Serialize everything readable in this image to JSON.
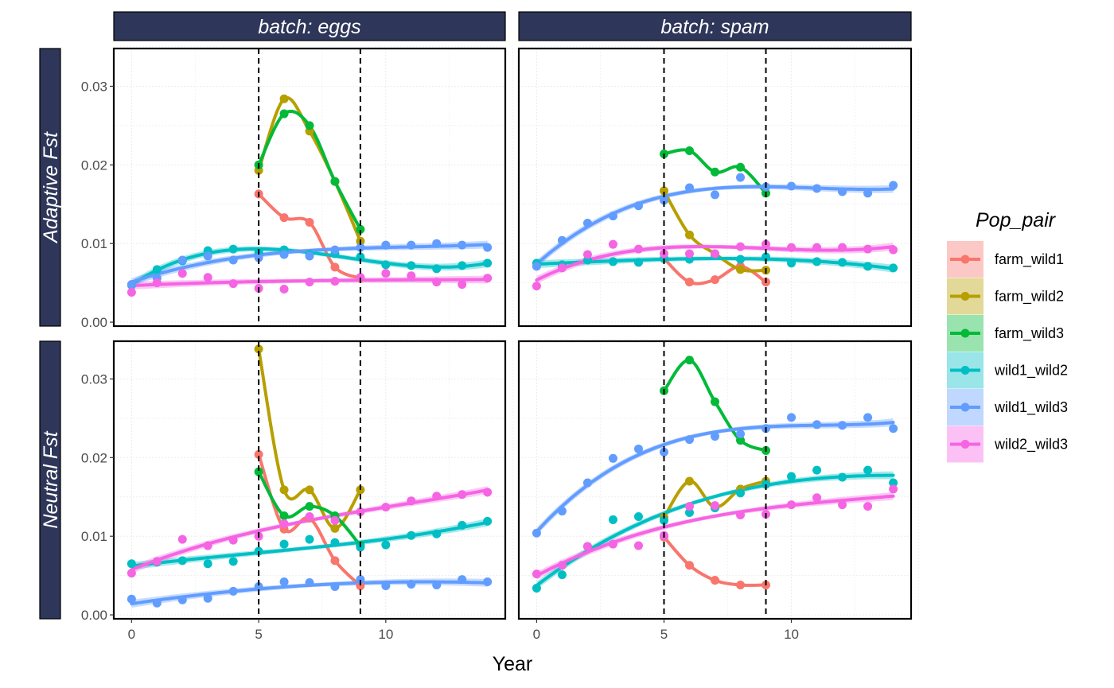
{
  "chart_data": {
    "type": "line",
    "x_label": "Year",
    "x_ticks": [
      0,
      5,
      10
    ],
    "x_range": [
      -0.7,
      14.7
    ],
    "y_ticks": [
      0,
      0.01,
      0.02,
      0.03
    ],
    "y_tick_labels": [
      "0.00",
      "0.01",
      "0.02",
      "0.03"
    ],
    "y_range": [
      -0.0005,
      0.0348
    ],
    "vlines": [
      5,
      9
    ],
    "facet_columns": [
      "batch: eggs",
      "batch: spam"
    ],
    "facet_rows": [
      "Adaptive Fst",
      "Neutral Fst"
    ],
    "strip_color": "#2e3659",
    "grid": true,
    "legend": {
      "title": "Pop_pair",
      "placement": "right",
      "items": [
        {
          "name": "farm_wild1",
          "color": "#F8766D"
        },
        {
          "name": "farm_wild2",
          "color": "#B79F00"
        },
        {
          "name": "farm_wild3",
          "color": "#00BA38"
        },
        {
          "name": "wild1_wild2",
          "color": "#00BFC4"
        },
        {
          "name": "wild1_wild3",
          "color": "#619CFF"
        },
        {
          "name": "wild2_wild3",
          "color": "#F564E3"
        }
      ]
    },
    "panels": [
      {
        "column": "batch: eggs",
        "row": "Adaptive Fst",
        "series": [
          {
            "name": "farm_wild1",
            "smooth": false,
            "x": [
              5,
              6,
              7,
              8,
              9
            ],
            "y": [
              0.0163,
              0.0133,
              0.0127,
              0.007,
              0.0056
            ]
          },
          {
            "name": "farm_wild2",
            "smooth": false,
            "x": [
              5,
              6,
              7,
              8,
              9
            ],
            "y": [
              0.0193,
              0.0284,
              0.0243,
              0.0179,
              0.0103
            ]
          },
          {
            "name": "farm_wild3",
            "smooth": false,
            "x": [
              5,
              6,
              7,
              8,
              9
            ],
            "y": [
              0.02,
              0.0265,
              0.025,
              0.0179,
              0.0118
            ]
          },
          {
            "name": "wild1_wild2",
            "smooth": true,
            "x": [
              0,
              1,
              2,
              3,
              4,
              5,
              6,
              7,
              8,
              9,
              10,
              11,
              12,
              13,
              14
            ],
            "y": [
              0.0047,
              0.0067,
              0.0078,
              0.0091,
              0.0093,
              0.0089,
              0.0092,
              0.0086,
              0.0087,
              0.0083,
              0.0073,
              0.0072,
              0.0068,
              0.0072,
              0.0075
            ]
          },
          {
            "name": "wild1_wild3",
            "smooth": true,
            "x": [
              0,
              1,
              2,
              3,
              4,
              5,
              6,
              7,
              8,
              9,
              10,
              11,
              12,
              13,
              14
            ],
            "y": [
              0.0048,
              0.0056,
              0.0079,
              0.0084,
              0.0079,
              0.0082,
              0.0086,
              0.0084,
              0.0092,
              0.0095,
              0.0098,
              0.0098,
              0.01,
              0.0098,
              0.0095
            ]
          },
          {
            "name": "wild2_wild3",
            "smooth": true,
            "x": [
              0,
              1,
              2,
              3,
              4,
              5,
              6,
              7,
              8,
              9,
              10,
              11,
              12,
              13,
              14
            ],
            "y": [
              0.0038,
              0.005,
              0.0062,
              0.0057,
              0.0049,
              0.0043,
              0.0042,
              0.0051,
              0.0052,
              0.0057,
              0.0062,
              0.0059,
              0.0051,
              0.0048,
              0.0056
            ]
          }
        ]
      },
      {
        "column": "batch: spam",
        "row": "Adaptive Fst",
        "series": [
          {
            "name": "farm_wild1",
            "smooth": false,
            "x": [
              5,
              6,
              7,
              8,
              9
            ],
            "y": [
              0.0081,
              0.0051,
              0.0054,
              0.0071,
              0.0051
            ]
          },
          {
            "name": "farm_wild2",
            "smooth": false,
            "x": [
              5,
              6,
              7,
              8,
              9
            ],
            "y": [
              0.0167,
              0.0111,
              0.0087,
              0.0067,
              0.0066
            ]
          },
          {
            "name": "farm_wild3",
            "smooth": false,
            "x": [
              5,
              6,
              7,
              8,
              9
            ],
            "y": [
              0.0214,
              0.0218,
              0.0191,
              0.0197,
              0.0164
            ]
          },
          {
            "name": "wild1_wild2",
            "smooth": true,
            "x": [
              0,
              1,
              2,
              3,
              4,
              5,
              6,
              7,
              8,
              9,
              10,
              11,
              12,
              13,
              14
            ],
            "y": [
              0.0075,
              0.0073,
              0.0079,
              0.0077,
              0.0076,
              0.0081,
              0.008,
              0.0085,
              0.008,
              0.0083,
              0.0075,
              0.0077,
              0.0076,
              0.0071,
              0.0069
            ]
          },
          {
            "name": "wild1_wild3",
            "smooth": true,
            "x": [
              0,
              1,
              2,
              3,
              4,
              5,
              6,
              7,
              8,
              9,
              10,
              11,
              12,
              13,
              14
            ],
            "y": [
              0.0071,
              0.0104,
              0.0126,
              0.0135,
              0.0148,
              0.0155,
              0.0171,
              0.0162,
              0.0184,
              0.0172,
              0.0173,
              0.017,
              0.0166,
              0.0164,
              0.0174
            ]
          },
          {
            "name": "wild2_wild3",
            "smooth": true,
            "x": [
              0,
              1,
              2,
              3,
              4,
              5,
              6,
              7,
              8,
              9,
              10,
              11,
              12,
              13,
              14
            ],
            "y": [
              0.0046,
              0.0069,
              0.0086,
              0.0099,
              0.0093,
              0.0087,
              0.0087,
              0.0087,
              0.0096,
              0.0099,
              0.0095,
              0.0095,
              0.0095,
              0.0093,
              0.0092
            ]
          }
        ]
      },
      {
        "column": "batch: eggs",
        "row": "Neutral Fst",
        "series": [
          {
            "name": "farm_wild1",
            "smooth": false,
            "x": [
              5,
              6,
              7,
              8,
              9
            ],
            "y": [
              0.0204,
              0.0109,
              0.0123,
              0.0069,
              0.0037
            ]
          },
          {
            "name": "farm_wild2",
            "smooth": false,
            "x": [
              5,
              6,
              7,
              8,
              9
            ],
            "y": [
              0.0338,
              0.0159,
              0.0159,
              0.011,
              0.0159
            ]
          },
          {
            "name": "farm_wild3",
            "smooth": false,
            "x": [
              5,
              6,
              7,
              8,
              9
            ],
            "y": [
              0.0182,
              0.0126,
              0.0138,
              0.0126,
              0.0088
            ]
          },
          {
            "name": "wild1_wild2",
            "smooth": true,
            "x": [
              0,
              1,
              2,
              3,
              4,
              5,
              6,
              7,
              8,
              9,
              10,
              11,
              12,
              13,
              14
            ],
            "y": [
              0.0065,
              0.0067,
              0.0069,
              0.0065,
              0.0068,
              0.0081,
              0.009,
              0.0096,
              0.0092,
              0.0086,
              0.0089,
              0.0101,
              0.0103,
              0.0114,
              0.0119
            ]
          },
          {
            "name": "wild1_wild3",
            "smooth": true,
            "x": [
              0,
              1,
              2,
              3,
              4,
              5,
              6,
              7,
              8,
              9,
              10,
              11,
              12,
              13,
              14
            ],
            "y": [
              0.002,
              0.0015,
              0.0019,
              0.0021,
              0.003,
              0.0036,
              0.0042,
              0.0041,
              0.0036,
              0.0045,
              0.0037,
              0.0039,
              0.0038,
              0.0045,
              0.0042
            ]
          },
          {
            "name": "wild2_wild3",
            "smooth": true,
            "x": [
              0,
              1,
              2,
              3,
              4,
              5,
              6,
              7,
              8,
              9,
              10,
              11,
              12,
              13,
              14
            ],
            "y": [
              0.0053,
              0.0068,
              0.0096,
              0.0088,
              0.0095,
              0.01,
              0.0116,
              0.0125,
              0.012,
              0.0131,
              0.0137,
              0.0145,
              0.0151,
              0.0153,
              0.0156
            ]
          }
        ]
      },
      {
        "column": "batch: spam",
        "row": "Neutral Fst",
        "series": [
          {
            "name": "farm_wild1",
            "smooth": false,
            "x": [
              5,
              6,
              7,
              8,
              9
            ],
            "y": [
              0.0099,
              0.0063,
              0.0044,
              0.0038,
              0.0038
            ]
          },
          {
            "name": "farm_wild2",
            "smooth": false,
            "x": [
              5,
              6,
              7,
              8,
              9
            ],
            "y": [
              0.0124,
              0.017,
              0.0137,
              0.016,
              0.017
            ]
          },
          {
            "name": "farm_wild3",
            "smooth": false,
            "x": [
              5,
              6,
              7,
              8,
              9
            ],
            "y": [
              0.0285,
              0.0324,
              0.0271,
              0.0222,
              0.0209
            ]
          },
          {
            "name": "wild1_wild2",
            "smooth": true,
            "x": [
              0,
              1,
              2,
              3,
              4,
              5,
              6,
              7,
              8,
              9,
              10,
              11,
              12,
              13,
              14
            ],
            "y": [
              0.0034,
              0.0051,
              0.0087,
              0.0121,
              0.0125,
              0.012,
              0.013,
              0.0136,
              0.0155,
              0.0166,
              0.0176,
              0.0184,
              0.0175,
              0.0184,
              0.0168
            ]
          },
          {
            "name": "wild1_wild3",
            "smooth": true,
            "x": [
              0,
              1,
              2,
              3,
              4,
              5,
              6,
              7,
              8,
              9,
              10,
              11,
              12,
              13,
              14
            ],
            "y": [
              0.0104,
              0.0132,
              0.0168,
              0.0199,
              0.0211,
              0.0207,
              0.0223,
              0.0227,
              0.023,
              0.0237,
              0.0251,
              0.0242,
              0.0241,
              0.0251,
              0.0237
            ]
          },
          {
            "name": "wild2_wild3",
            "smooth": true,
            "x": [
              0,
              1,
              2,
              3,
              4,
              5,
              6,
              7,
              8,
              9,
              10,
              11,
              12,
              13,
              14
            ],
            "y": [
              0.0052,
              0.0063,
              0.0087,
              0.009,
              0.0088,
              0.0101,
              0.0138,
              0.0139,
              0.0127,
              0.0128,
              0.014,
              0.0149,
              0.014,
              0.0138,
              0.016
            ]
          }
        ]
      }
    ]
  }
}
